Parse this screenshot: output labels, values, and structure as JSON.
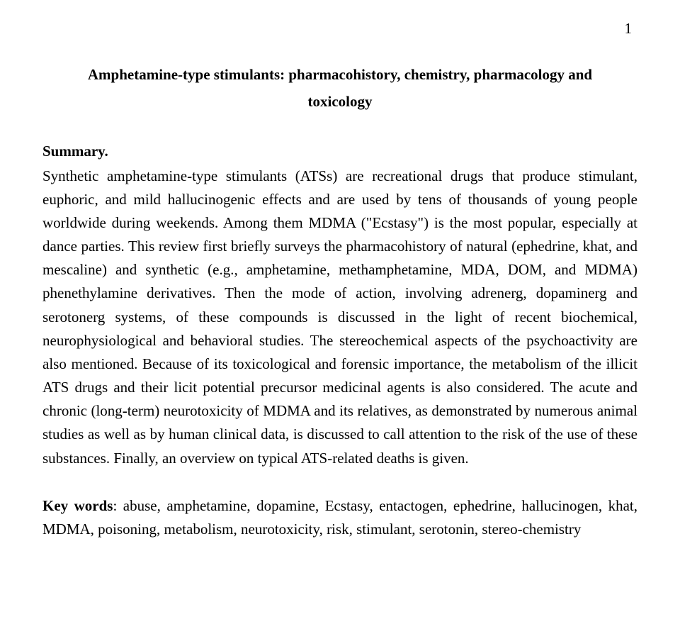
{
  "page_number": "1",
  "title_line1": "Amphetamine-type stimulants: pharmacohistory, chemistry, pharmacology and",
  "title_line2": "toxicology",
  "summary_heading": "Summary.",
  "body": "Synthetic amphetamine-type stimulants (ATSs) are recreational drugs that produce stimulant, euphoric, and mild hallucinogenic effects and are used by tens of thousands of young people worldwide during weekends. Among them MDMA (\"Ecstasy\") is the most popular, especially at dance parties. This review first briefly surveys the pharmacohistory of natural (ephedrine, khat, and mescaline) and synthetic (e.g., amphetamine, methamphetamine, MDA, DOM, and MDMA) phenethylamine derivatives. Then the mode of action, involving adrenerg, dopaminerg and serotonerg systems, of these compounds is discussed in the light of recent biochemical, neurophysiological and behavioral studies. The stereochemical aspects of the psychoactivity are also mentioned. Because of its toxicological and forensic importance, the metabolism of the illicit ATS drugs and their licit potential precursor medicinal agents is also considered. The acute and chronic (long-term) neurotoxicity of MDMA and its relatives, as demonstrated by numerous animal studies as well as by human clinical data, is discussed to call attention to the risk of the use of these substances. Finally, an overview on typical ATS-related deaths is given.",
  "keywords_label": "Key words",
  "keywords_text": ": abuse, amphetamine, dopamine, Ecstasy, entactogen, ephedrine, hallucinogen, khat, MDMA, poisoning, metabolism, neurotoxicity, risk, stimulant, serotonin, stereo-chemistry"
}
